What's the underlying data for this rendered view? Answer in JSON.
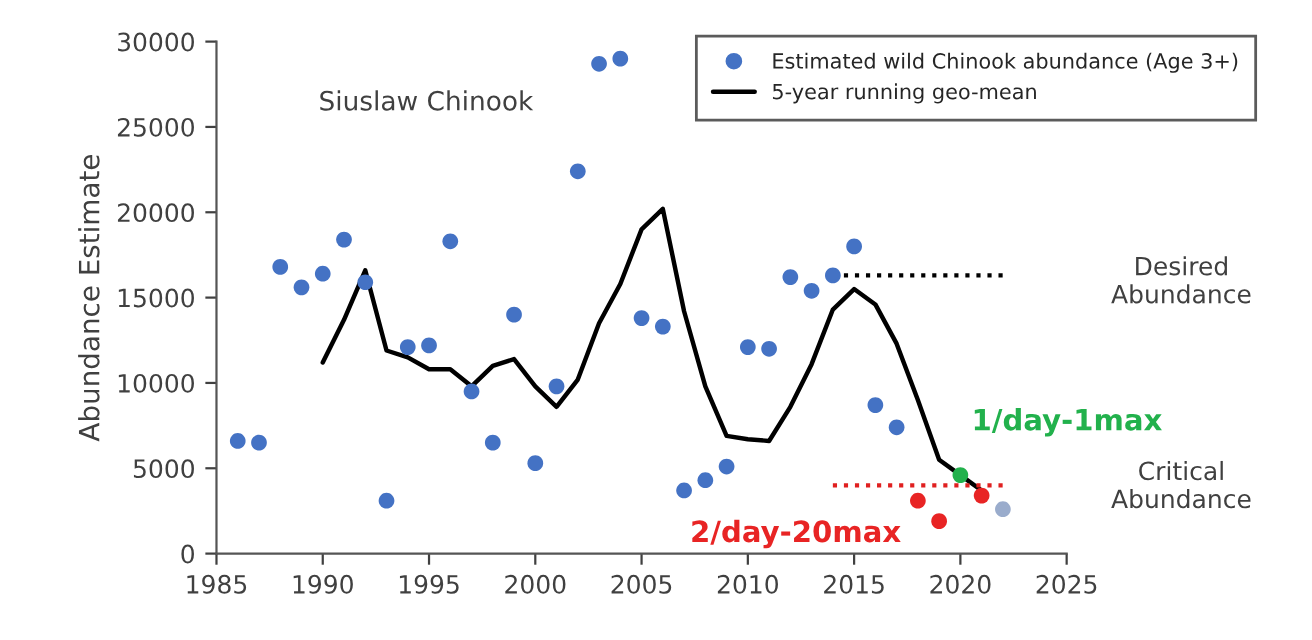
{
  "chart_data": {
    "type": "scatter",
    "ylabel": "Abundance Estimate",
    "xlim": [
      1985,
      2025
    ],
    "xticks": [
      1985,
      1990,
      1995,
      2000,
      2005,
      2010,
      2015,
      2020,
      2025
    ],
    "ylim": [
      0,
      30000
    ],
    "yticks": [
      0,
      5000,
      10000,
      15000,
      20000,
      25000,
      30000
    ],
    "grid": false,
    "legend": "top right",
    "marker": "circle",
    "series": [
      {
        "name": "Estimated wild Chinook abundance (Age 3+)",
        "color": "#4472c4",
        "x": [
          1986,
          1987,
          1988,
          1989,
          1990,
          1991,
          1992,
          1993,
          1994,
          1995,
          1996,
          1997,
          1998,
          1999,
          2000,
          2001,
          2002,
          2003,
          2004,
          2005,
          2006,
          2007,
          2008,
          2009,
          2010,
          2011,
          2012,
          2013,
          2014,
          2015,
          2016,
          2017
        ],
        "values": [
          6600,
          6500,
          16800,
          15600,
          16400,
          18400,
          15900,
          3100,
          12100,
          12200,
          18300,
          9500,
          6500,
          14000,
          5300,
          9800,
          22400,
          28700,
          29000,
          13800,
          13300,
          3700,
          4300,
          5100,
          12100,
          12000,
          16200,
          15400,
          16300,
          18000,
          8700,
          7400
        ]
      },
      {
        "name": "5-year running geo-mean",
        "type": "line",
        "color": "#000000",
        "marker": "none",
        "line_style": "solid",
        "x": [
          1990,
          1991,
          1992,
          1993,
          1994,
          1995,
          1996,
          1997,
          1998,
          1999,
          2000,
          2001,
          2002,
          2003,
          2004,
          2005,
          2006,
          2007,
          2008,
          2009,
          2010,
          2011,
          2012,
          2013,
          2014,
          2015,
          2016,
          2017,
          2018,
          2019,
          2020,
          2021
        ],
        "values": [
          11200,
          13700,
          16600,
          11900,
          11500,
          10800,
          10800,
          9800,
          11000,
          11400,
          9800,
          8600,
          10200,
          13500,
          15800,
          19000,
          20200,
          14200,
          9800,
          6900,
          6700,
          6600,
          8600,
          11100,
          14300,
          15500,
          14600,
          12300,
          9000,
          5500,
          4600,
          3700
        ]
      },
      {
        "type": "line",
        "color": "#000000",
        "marker": "none",
        "line_style": "dotted",
        "x": [
          2014,
          2022
        ],
        "values": [
          16300,
          16300
        ]
      },
      {
        "type": "line",
        "color": "#e02020",
        "marker": "none",
        "line_style": "dotted",
        "x": [
          2014,
          2022
        ],
        "values": [
          4000,
          4000
        ]
      },
      {
        "color": "#e82424",
        "x": [
          2018,
          2019,
          2021
        ],
        "values": [
          3100,
          1900,
          3400
        ]
      },
      {
        "color": "#22b14c",
        "x": [
          2020
        ],
        "values": [
          4600
        ]
      },
      {
        "color": "#9aaccc",
        "x": [
          2022
        ],
        "values": [
          2600
        ]
      }
    ],
    "annotations": [
      "Siuslaw Chinook",
      {
        "text": "1/day-1max",
        "x": 2020,
        "y": 4600
      },
      {
        "text": "2/day-20max",
        "x": 2018,
        "y": 3100
      },
      "Desired\nAbundance",
      "Critical\nAbundance"
    ]
  }
}
